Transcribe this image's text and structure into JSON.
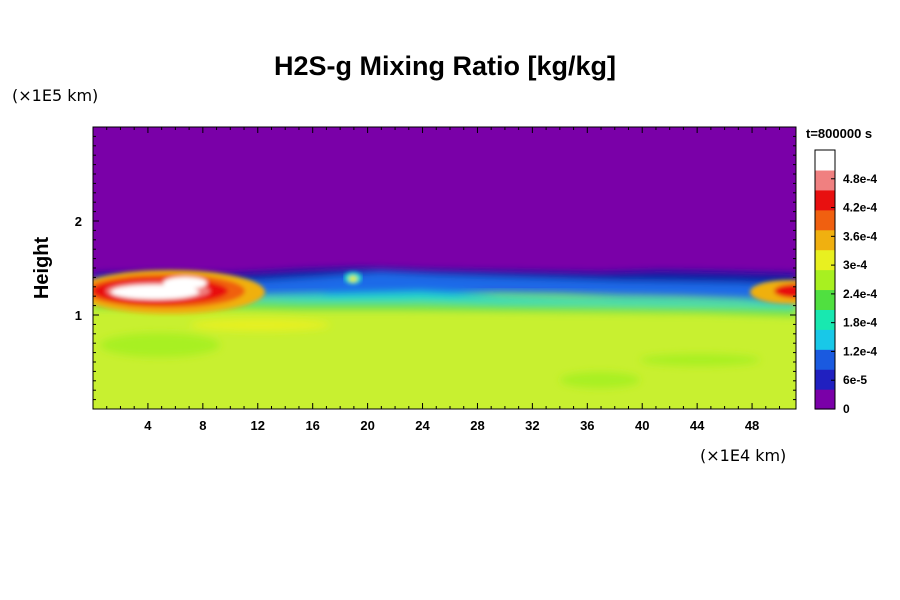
{
  "chart_data": {
    "type": "heatmap",
    "title": "H2S-g Mixing Ratio [kg/kg]",
    "ylabel": "Height",
    "x_unit": "(×1E4 km)",
    "y_unit": "(×1E5 km)",
    "timestamp": "t=800000 s",
    "xlim": [
      0,
      51.2
    ],
    "ylim": [
      0,
      3.0
    ],
    "x_ticks": [
      4,
      8,
      12,
      16,
      20,
      24,
      28,
      32,
      36,
      40,
      44,
      48
    ],
    "x_tick_labels": [
      "4",
      "8",
      "12",
      "16",
      "20",
      "24",
      "28",
      "32",
      "36",
      "40",
      "44",
      "48"
    ],
    "y_ticks": [
      1,
      2
    ],
    "y_tick_labels": [
      "1",
      "2"
    ],
    "colorbar": {
      "min": 0,
      "max": 0.00054,
      "tick_values": [
        0,
        6e-05,
        0.00012,
        0.00018,
        0.00024,
        0.0003,
        0.00036,
        0.00042,
        0.00048
      ],
      "tick_labels": [
        "0",
        "6e-5",
        "1.2e-4",
        "1.8e-4",
        "2.4e-4",
        "3e-4",
        "3.6e-4",
        "4.2e-4",
        "4.8e-4"
      ],
      "colors": [
        "#7a00a8",
        "#2020c0",
        "#1a5ae0",
        "#18c8e8",
        "#18e8b0",
        "#50e040",
        "#a8f020",
        "#e8f020",
        "#f0b010",
        "#f06010",
        "#e81010",
        "#f08080",
        "#ffffff"
      ]
    },
    "field_description": {
      "upper_layer_value": 0,
      "lower_layer_value": 0.00034,
      "interface_height": 1.47,
      "hot_spot": {
        "x_center": 7,
        "y_center": 1.25,
        "value": 0.00054
      }
    }
  }
}
